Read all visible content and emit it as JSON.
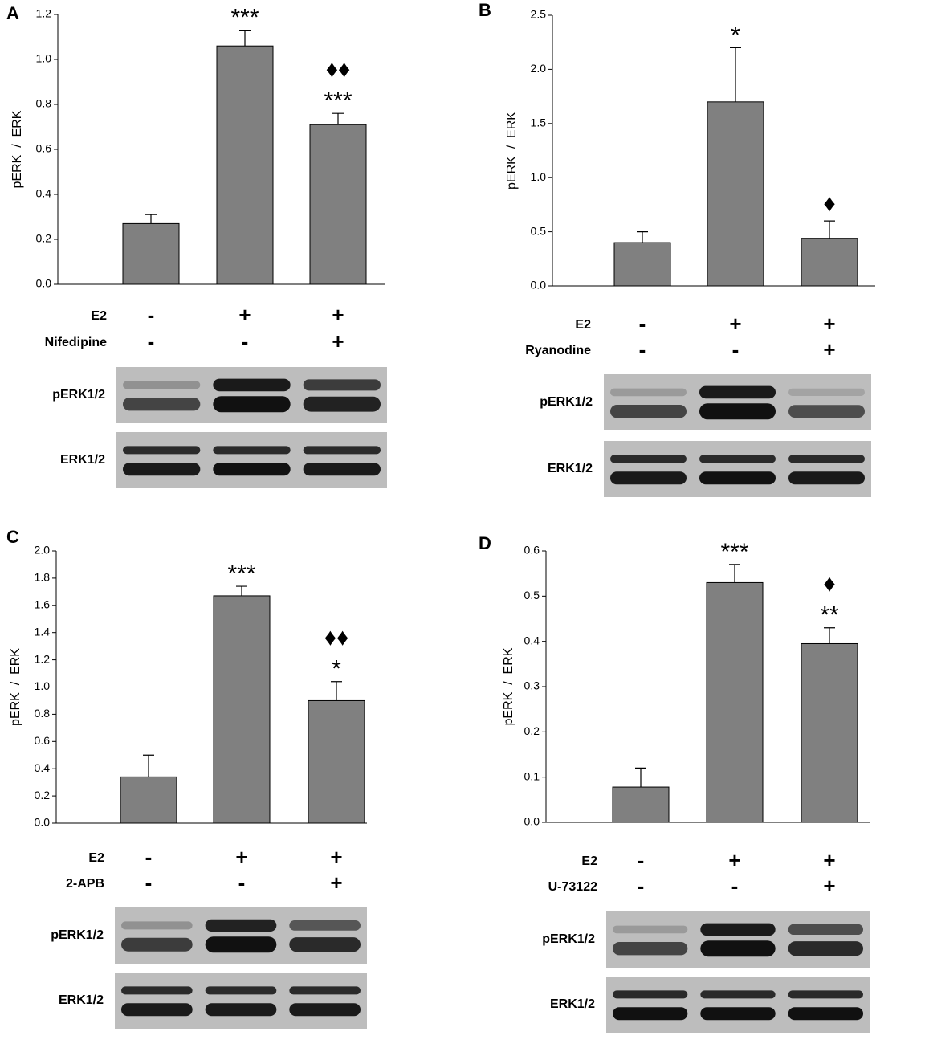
{
  "chart_data": [
    {
      "type": "bar",
      "panel": "A",
      "ylabel": "pERK  /  ERK",
      "color": "#808080",
      "ylim": [
        0,
        1.2
      ],
      "yticks": [
        {
          "value": 0,
          "label": "0.0"
        },
        0.2,
        0.4,
        0.6,
        0.8,
        {
          "value": 1,
          "label": "1.0"
        },
        1.2
      ],
      "values": [
        0.27,
        1.06,
        0.71
      ],
      "errors": [
        0.04,
        0.07,
        0.05
      ],
      "annotations": [
        [],
        [
          "***"
        ],
        [
          "♦♦",
          "***"
        ]
      ],
      "treatments": [
        {
          "name": "E2",
          "signs": [
            "-",
            "+",
            "+"
          ]
        },
        {
          "name": "Nifedipine",
          "signs": [
            "-",
            "-",
            "+"
          ]
        }
      ],
      "blots": [
        "pERK1/2",
        "ERK1/2"
      ]
    },
    {
      "type": "bar",
      "panel": "B",
      "ylabel": "pERK  /  ERK",
      "color": "#808080",
      "ylim": [
        0,
        2.5
      ],
      "yticks": [
        {
          "value": 0,
          "label": "0.0"
        },
        0.5,
        {
          "value": 1,
          "label": "1.0"
        },
        1.5,
        {
          "value": 2,
          "label": "2.0"
        },
        2.5
      ],
      "values": [
        0.4,
        1.7,
        0.44
      ],
      "errors": [
        0.1,
        0.5,
        0.16
      ],
      "annotations": [
        [],
        [
          "*"
        ],
        [
          "♦"
        ]
      ],
      "treatments": [
        {
          "name": "E2",
          "signs": [
            "-",
            "+",
            "+"
          ]
        },
        {
          "name": "Ryanodine",
          "signs": [
            "-",
            "-",
            "+"
          ]
        }
      ],
      "blots": [
        "pERK1/2",
        "ERK1/2"
      ]
    },
    {
      "type": "bar",
      "panel": "C",
      "ylabel": "pERK  /  ERK",
      "color": "#808080",
      "ylim": [
        0,
        2
      ],
      "yticks": [
        {
          "value": 0,
          "label": "0.0"
        },
        0.2,
        0.4,
        0.6,
        0.8,
        {
          "value": 1,
          "label": "1.0"
        },
        1.2,
        1.4,
        1.6,
        1.8,
        {
          "value": 2,
          "label": "2.0"
        }
      ],
      "values": [
        0.34,
        1.67,
        0.9
      ],
      "errors": [
        0.16,
        0.07,
        0.14
      ],
      "annotations": [
        [],
        [
          "***"
        ],
        [
          "♦♦",
          "*"
        ]
      ],
      "treatments": [
        {
          "name": "E2",
          "signs": [
            "-",
            "+",
            "+"
          ]
        },
        {
          "name": "2-APB",
          "signs": [
            "-",
            "-",
            "+"
          ]
        }
      ],
      "blots": [
        "pERK1/2",
        "ERK1/2"
      ]
    },
    {
      "type": "bar",
      "panel": "D",
      "ylabel": "pERK  /  ERK",
      "color": "#808080",
      "ylim": [
        0,
        0.6
      ],
      "yticks": [
        {
          "value": 0,
          "label": "0.0"
        },
        0.1,
        0.2,
        0.3,
        0.4,
        0.5,
        0.6
      ],
      "values": [
        0.078,
        0.53,
        0.395
      ],
      "errors": [
        0.042,
        0.04,
        0.035
      ],
      "annotations": [
        [],
        [
          "***"
        ],
        [
          "♦",
          "**"
        ]
      ],
      "treatments": [
        {
          "name": "E2",
          "signs": [
            "-",
            "+",
            "+"
          ]
        },
        {
          "name": "U-73122",
          "signs": [
            "-",
            "-",
            "+"
          ]
        }
      ],
      "blots": [
        "pERK1/2",
        "ERK1/2"
      ]
    }
  ]
}
